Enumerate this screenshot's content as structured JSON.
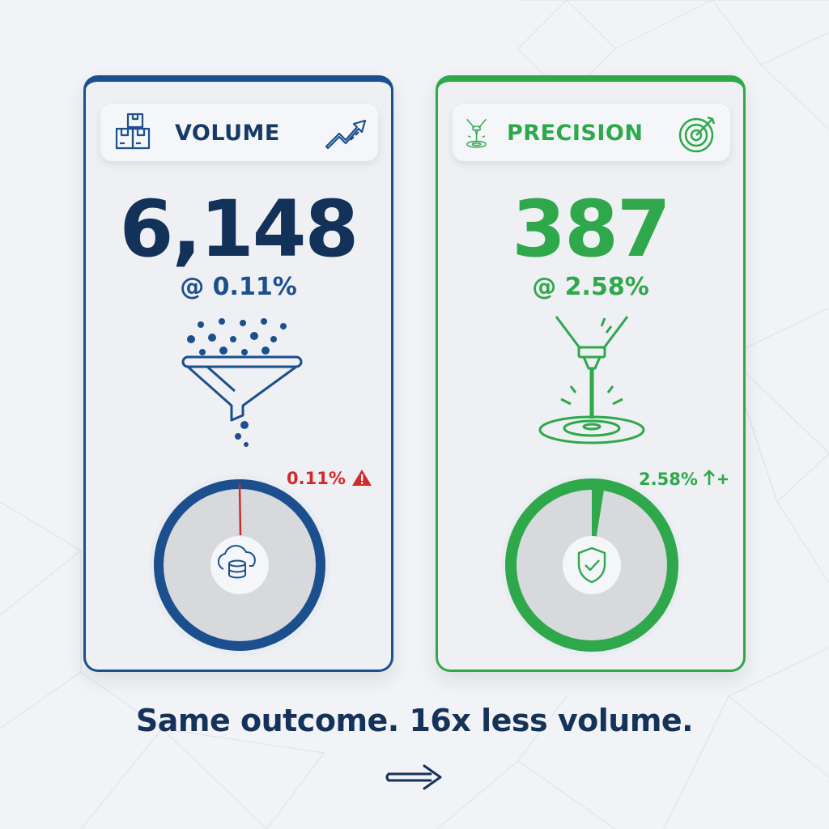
{
  "volume": {
    "title": "VOLUME",
    "count": "6,148",
    "rate": "@ 0.11%",
    "gauge_label": "0.11%",
    "gauge_fraction": 0.0011,
    "accent": "#1c4f8d",
    "alert_color": "#d12a2a",
    "icons": [
      "boxes-icon",
      "trending-up-icon",
      "funnel-icon",
      "warning-icon",
      "cloud-database-icon"
    ]
  },
  "precision": {
    "title": "PRECISION",
    "count": "387",
    "rate": "@ 2.58%",
    "gauge_label": "2.58%",
    "gauge_fraction": 0.0258,
    "accent": "#2ea84a",
    "icons": [
      "laser-icon",
      "target-icon",
      "laser-target-icon",
      "arrow-up-plus-icon",
      "shield-check-icon"
    ]
  },
  "tagline": "Same outcome. 16x less volume.",
  "footer_icon": "arrow-right-icon"
}
